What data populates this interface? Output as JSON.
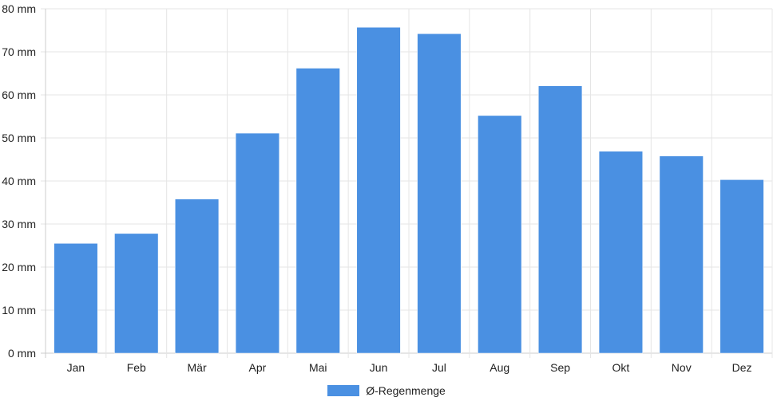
{
  "chart_data": {
    "type": "bar",
    "categories": [
      "Jan",
      "Feb",
      "Mär",
      "Apr",
      "Mai",
      "Jun",
      "Jul",
      "Aug",
      "Sep",
      "Okt",
      "Nov",
      "Dez"
    ],
    "series": [
      {
        "name": "Ø-Regenmenge",
        "values": [
          25.5,
          27.8,
          35.8,
          51.1,
          66.2,
          75.7,
          74.2,
          55.2,
          62.1,
          46.9,
          45.8,
          40.3
        ],
        "color": "#4a90e2"
      }
    ],
    "y_ticks": [
      "0 mm",
      "10 mm",
      "20 mm",
      "30 mm",
      "40 mm",
      "50 mm",
      "60 mm",
      "70 mm",
      "80 mm"
    ],
    "ylim": [
      0,
      80
    ],
    "grid": true,
    "legend_position": "bottom"
  }
}
